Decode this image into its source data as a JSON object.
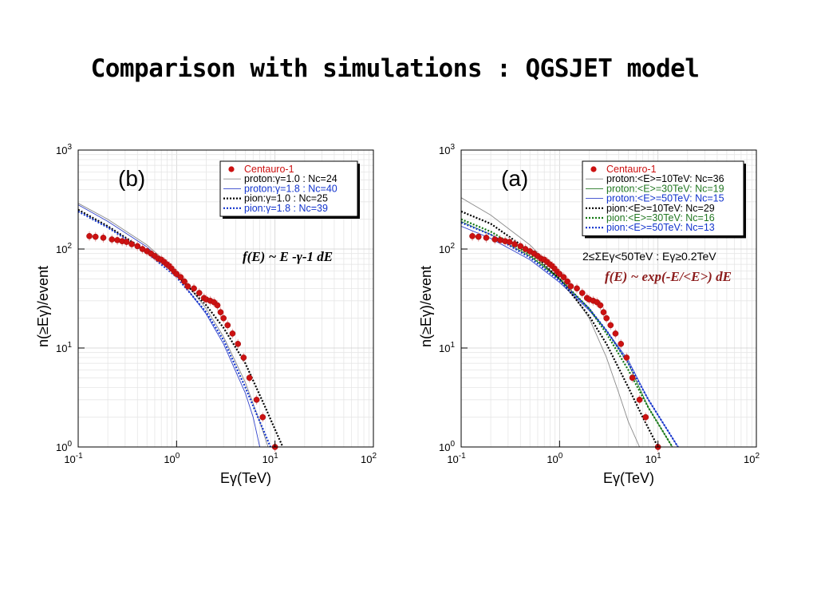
{
  "slide": {
    "title": "Comparison with simulations : QGSJET model"
  },
  "colors": {
    "data": "#cc1111",
    "proton_gray": "#888888",
    "proton_blue": "#3344cc",
    "pion_black": "#000000",
    "pion_blue": "#1133cc",
    "proton_green": "#227722",
    "pion_green": "#117711",
    "formula_red": "#8b1a1a"
  },
  "chart_data": [
    {
      "type": "scatter",
      "panel_label": "(b)",
      "xlabel": "Eγ(TeV)",
      "ylabel": "n(≥Eγ)/event",
      "xscale": "log",
      "yscale": "log",
      "xlim": [
        0.1,
        100
      ],
      "ylim": [
        1,
        1000
      ],
      "x_tick_labels": [
        "10-1",
        "100",
        "101",
        "102"
      ],
      "y_tick_labels": [
        "100",
        "101",
        "102",
        "103"
      ],
      "formula": "f(E) ~ E -γ-1 dE",
      "legend_position": "top-right",
      "legend": [
        {
          "label": "Centauro-1",
          "color": "#cc1111",
          "style": "marker"
        },
        {
          "label": "proton:γ=1.0 : Nc=24",
          "color": "#000000",
          "style": "thin-gray"
        },
        {
          "label": "proton:γ=1.8 : Nc=40",
          "color": "#3344cc",
          "style": "thin-blue"
        },
        {
          "label": "pion:γ=1.0 : Nc=25",
          "color": "#000000",
          "style": "dotted-black"
        },
        {
          "label": "pion:γ=1.8 : Nc=39",
          "color": "#1133cc",
          "style": "dotted-blue"
        }
      ],
      "series": [
        {
          "name": "Centauro-1",
          "x": [
            0.13,
            0.15,
            0.18,
            0.22,
            0.25,
            0.28,
            0.31,
            0.35,
            0.4,
            0.45,
            0.5,
            0.55,
            0.6,
            0.65,
            0.7,
            0.75,
            0.8,
            0.85,
            0.9,
            0.95,
            1.0,
            1.1,
            1.2,
            1.3,
            1.5,
            1.7,
            1.9,
            2.0,
            2.2,
            2.4,
            2.6,
            2.8,
            3.0,
            3.3,
            3.7,
            4.2,
            4.8,
            5.5,
            6.5,
            7.5,
            10.0
          ],
          "y": [
            135,
            133,
            130,
            125,
            123,
            120,
            118,
            112,
            107,
            100,
            95,
            90,
            85,
            80,
            78,
            74,
            70,
            67,
            63,
            59,
            56,
            52,
            47,
            42,
            40,
            36,
            32,
            31,
            30,
            29,
            27,
            23,
            20,
            17,
            14,
            11,
            8,
            5,
            3,
            2,
            1
          ]
        },
        {
          "name": "proton:γ=1.0 : Nc=24",
          "x": [
            0.1,
            0.2,
            0.5,
            1,
            2,
            3,
            5,
            7,
            8.5
          ],
          "y": [
            290,
            200,
            110,
            60,
            25,
            13,
            4.5,
            1.8,
            1
          ]
        },
        {
          "name": "proton:γ=1.8 : Nc=40",
          "x": [
            0.1,
            0.2,
            0.5,
            1,
            2,
            3,
            5,
            6,
            7
          ],
          "y": [
            280,
            190,
            105,
            55,
            22,
            11,
            3.5,
            2,
            1
          ]
        },
        {
          "name": "pion:γ=1.0 : Nc=25",
          "x": [
            0.1,
            0.2,
            0.5,
            1,
            2,
            3,
            5,
            8,
            12
          ],
          "y": [
            250,
            170,
            95,
            55,
            27,
            16,
            7,
            2.5,
            1
          ]
        },
        {
          "name": "pion:γ=1.8 : Nc=39",
          "x": [
            0.1,
            0.2,
            0.5,
            1,
            2,
            3,
            5,
            7,
            9
          ],
          "y": [
            240,
            165,
            92,
            52,
            23,
            12,
            4,
            1.8,
            1
          ]
        }
      ]
    },
    {
      "type": "scatter",
      "panel_label": "(a)",
      "xlabel": "Eγ(TeV)",
      "ylabel": "n(≥Eγ)/event",
      "xscale": "log",
      "yscale": "log",
      "xlim": [
        0.1,
        100
      ],
      "ylim": [
        1,
        1000
      ],
      "x_tick_labels": [
        "10-1",
        "100",
        "101",
        "102"
      ],
      "y_tick_labels": [
        "100",
        "101",
        "102",
        "103"
      ],
      "annotation": "2≤ΣEγ<50TeV : Eγ≥0.2TeV",
      "formula": "f(E) ~ exp(-E/<E>) dE",
      "legend_position": "top-right",
      "legend": [
        {
          "label": "Centauro-1",
          "color": "#cc1111",
          "style": "marker"
        },
        {
          "label": "proton:<E>=10TeV: Nc=36",
          "color": "#000000",
          "style": "thin-gray"
        },
        {
          "label": "proton:<E>=30TeV: Nc=19",
          "color": "#227722",
          "style": "thin-green"
        },
        {
          "label": "proton:<E>=50TeV: Nc=15",
          "color": "#3344cc",
          "style": "thin-blue"
        },
        {
          "label": "pion:<E>=10TeV: Nc=29",
          "color": "#000000",
          "style": "dotted-black"
        },
        {
          "label": "pion:<E>=30TeV: Nc=16",
          "color": "#117711",
          "style": "dotted-green"
        },
        {
          "label": "pion:<E>=50TeV: Nc=13",
          "color": "#1133cc",
          "style": "dotted-blue"
        }
      ],
      "series": [
        {
          "name": "Centauro-1",
          "x": [
            0.13,
            0.15,
            0.18,
            0.22,
            0.25,
            0.28,
            0.31,
            0.35,
            0.4,
            0.45,
            0.5,
            0.55,
            0.6,
            0.65,
            0.7,
            0.75,
            0.8,
            0.85,
            0.9,
            0.95,
            1.0,
            1.1,
            1.2,
            1.3,
            1.5,
            1.7,
            1.9,
            2.0,
            2.2,
            2.4,
            2.6,
            2.8,
            3.0,
            3.3,
            3.7,
            4.2,
            4.8,
            5.5,
            6.5,
            7.5,
            10.0
          ],
          "y": [
            135,
            133,
            130,
            125,
            123,
            120,
            118,
            112,
            107,
            100,
            95,
            90,
            85,
            80,
            78,
            74,
            70,
            67,
            63,
            59,
            56,
            52,
            47,
            42,
            40,
            36,
            32,
            31,
            30,
            29,
            27,
            23,
            20,
            17,
            14,
            11,
            8,
            5,
            3,
            2,
            1
          ]
        },
        {
          "name": "proton:<E>=10TeV: Nc=36",
          "x": [
            0.1,
            0.2,
            0.5,
            1,
            2,
            3,
            4,
            5,
            6.5
          ],
          "y": [
            330,
            220,
            110,
            55,
            20,
            8,
            3.5,
            1.8,
            1
          ]
        },
        {
          "name": "proton:<E>=30TeV: Nc=19",
          "x": [
            0.1,
            0.2,
            0.5,
            1,
            2,
            3,
            5,
            8,
            14
          ],
          "y": [
            190,
            140,
            85,
            50,
            25,
            15,
            7,
            2.5,
            1
          ]
        },
        {
          "name": "proton:<E>=50TeV: Nc=15",
          "x": [
            0.1,
            0.2,
            0.5,
            1,
            2,
            3,
            5,
            8,
            16
          ],
          "y": [
            170,
            128,
            78,
            46,
            24,
            15,
            7.5,
            3,
            1
          ]
        },
        {
          "name": "pion:<E>=10TeV: Nc=29",
          "x": [
            0.1,
            0.2,
            0.5,
            1,
            2,
            3,
            5,
            7,
            10
          ],
          "y": [
            240,
            180,
            95,
            50,
            21,
            11,
            4,
            2,
            1
          ]
        },
        {
          "name": "pion:<E>=30TeV: Nc=16",
          "x": [
            0.1,
            0.2,
            0.5,
            1,
            2,
            3,
            5,
            8,
            14
          ],
          "y": [
            200,
            150,
            88,
            50,
            25,
            14,
            6,
            2.5,
            1
          ]
        },
        {
          "name": "pion:<E>=50TeV: Nc=13",
          "x": [
            0.1,
            0.2,
            0.5,
            1,
            2,
            3,
            5,
            8,
            16
          ],
          "y": [
            185,
            140,
            82,
            48,
            25,
            15,
            7,
            3,
            1
          ]
        }
      ]
    }
  ]
}
